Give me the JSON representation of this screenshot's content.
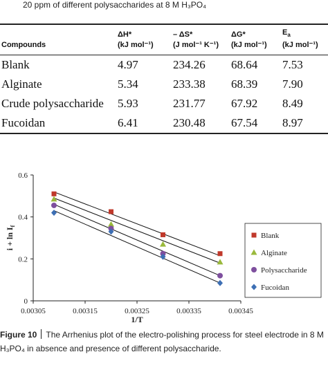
{
  "caption_top": "20 ppm of different polysaccharides at 8 M H₃PO₄",
  "table": {
    "headers": {
      "compounds": "Compounds",
      "dH": "ΔH*",
      "dH_unit": "(kJ mol⁻¹)",
      "dS": "– ΔS*",
      "dS_unit": "(J mol⁻¹ K⁻¹)",
      "dG": "ΔG*",
      "dG_unit": "(kJ mol⁻¹)",
      "Ea": "E",
      "Ea_sub": "a",
      "Ea_unit": "(kJ mol⁻¹)"
    },
    "rows": [
      {
        "compound": "Blank",
        "dH": "4.97",
        "dS": "234.26",
        "dG": "68.64",
        "Ea": "7.53"
      },
      {
        "compound": "Alginate",
        "dH": "5.34",
        "dS": "233.38",
        "dG": "68.39",
        "Ea": "7.90"
      },
      {
        "compound": "Crude polysaccharide",
        "dH": "5.93",
        "dS": "231.77",
        "dG": "67.92",
        "Ea": "8.49"
      },
      {
        "compound": "Fucoidan",
        "dH": "6.41",
        "dS": "230.48",
        "dG": "67.54",
        "Ea": "8.97"
      }
    ]
  },
  "chart_data": {
    "type": "scatter",
    "xlabel": "1/T",
    "ylabel": "i + ln I",
    "ylabel_sub": "f",
    "xlim": [
      0.00305,
      0.00345
    ],
    "ylim": [
      0,
      0.6
    ],
    "x_ticks": [
      "0.00305",
      "0.00315",
      "0.00325",
      "0.00335",
      "0.00345"
    ],
    "y_ticks": [
      "0",
      "0.2",
      "0.4",
      "0.6"
    ],
    "grid": false,
    "legend_position": "right",
    "series": [
      {
        "name": "Blank",
        "marker": "square",
        "color": "#c0392b",
        "x": [
          0.00309,
          0.0032,
          0.0033,
          0.00341
        ],
        "y": [
          0.51,
          0.425,
          0.315,
          0.225
        ],
        "fit": [
          [
            0.00309,
            0.519
          ],
          [
            0.00341,
            0.215
          ]
        ]
      },
      {
        "name": "Alginate",
        "marker": "triangle",
        "color": "#9ab93c",
        "x": [
          0.00309,
          0.0032,
          0.0033,
          0.00341
        ],
        "y": [
          0.485,
          0.365,
          0.27,
          0.185
        ],
        "fit": [
          [
            0.00309,
            0.49
          ],
          [
            0.00341,
            0.18
          ]
        ]
      },
      {
        "name": "Polysaccharide",
        "marker": "circle",
        "color": "#7e4f9e",
        "x": [
          0.00309,
          0.0032,
          0.0033,
          0.00341
        ],
        "y": [
          0.455,
          0.345,
          0.225,
          0.12
        ],
        "fit": [
          [
            0.00309,
            0.46
          ],
          [
            0.00341,
            0.12
          ]
        ]
      },
      {
        "name": "Fucoidan",
        "marker": "diamond",
        "color": "#3d6fb4",
        "x": [
          0.00309,
          0.0032,
          0.0033,
          0.00341
        ],
        "y": [
          0.42,
          0.33,
          0.21,
          0.085
        ],
        "fit": [
          [
            0.00309,
            0.43
          ],
          [
            0.00341,
            0.085
          ]
        ]
      }
    ]
  },
  "figure_caption": {
    "label": "Figure 10",
    "text": "The Arrhenius plot of the electro-polishing process for steel electrode in 8 M H₃PO₄ in absence and presence of different polysaccharide."
  }
}
